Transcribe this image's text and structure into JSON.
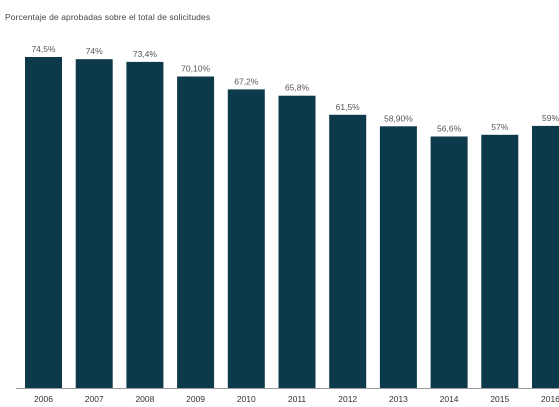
{
  "chart_data": {
    "type": "bar",
    "subtitle": "Porcentaje de aprobadas sobre el total de solicitudes",
    "categories": [
      "2006",
      "2007",
      "2008",
      "2009",
      "2010",
      "2011",
      "2012",
      "2013",
      "2014",
      "2015",
      "2016"
    ],
    "values": [
      74.5,
      74,
      73.4,
      70.1,
      67.2,
      65.8,
      61.5,
      58.9,
      56.6,
      57,
      59
    ],
    "data_labels": [
      "74,5%",
      "74%",
      "73,4%",
      "70,10%",
      "67,2%",
      "65,8%",
      "61,5%",
      "58,90%",
      "56,6%",
      "57%",
      "59%"
    ],
    "ylim": [
      0,
      74.5
    ],
    "grid": false,
    "legend": "none",
    "colors": {
      "bar": "#0d3a4a",
      "axis": "#999999",
      "text": "#333333"
    }
  }
}
